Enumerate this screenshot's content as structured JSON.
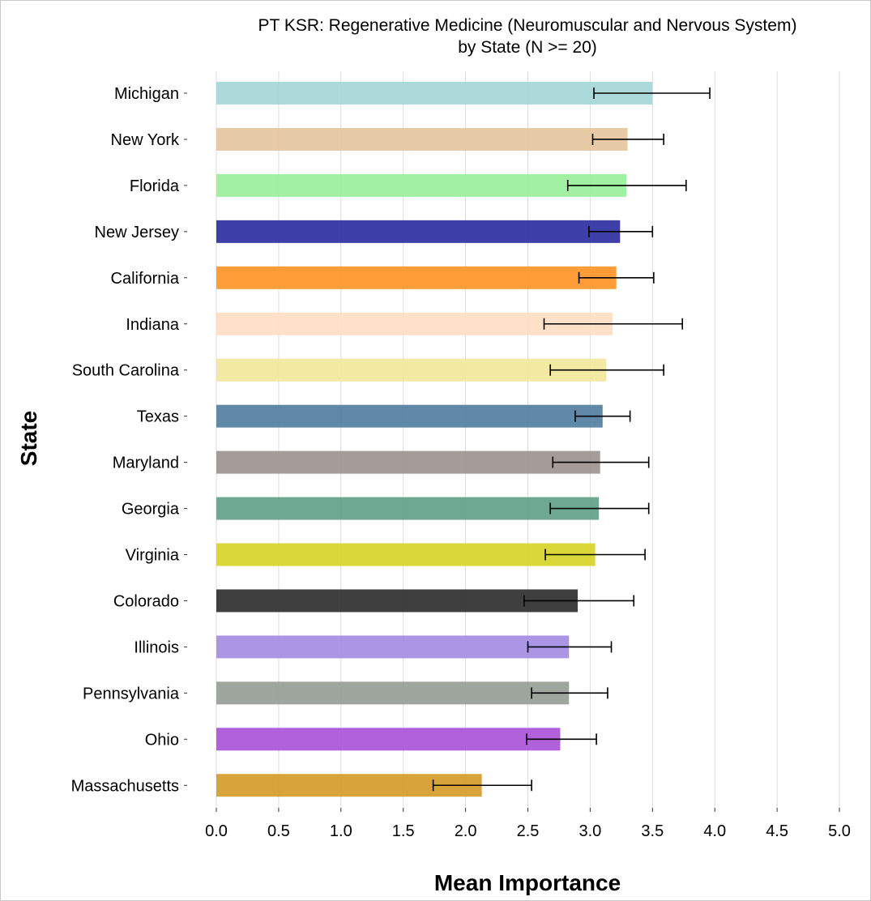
{
  "chart_data": {
    "type": "bar",
    "orientation": "horizontal",
    "title": "PT KSR: Regenerative Medicine (Neuromuscular and Nervous System)",
    "subtitle": "by State (N >= 20)",
    "xlabel": "Mean Importance",
    "ylabel": "State",
    "xlim": [
      0,
      5
    ],
    "x_ticks": [
      "0.0",
      "0.5",
      "1.0",
      "1.5",
      "2.0",
      "2.5",
      "3.0",
      "3.5",
      "4.0",
      "4.5",
      "5.0"
    ],
    "grid": "vertical",
    "legend": "none",
    "bars": [
      {
        "category": "Michigan",
        "value": 3.5,
        "err_low": 3.03,
        "err_high": 3.96,
        "color": "#a3d5d5"
      },
      {
        "category": "New York",
        "value": 3.3,
        "err_low": 3.02,
        "err_high": 3.59,
        "color": "#e4c49c"
      },
      {
        "category": "Florida",
        "value": 3.29,
        "err_low": 2.82,
        "err_high": 3.77,
        "color": "#98ee98"
      },
      {
        "category": "New Jersey",
        "value": 3.24,
        "err_low": 2.99,
        "err_high": 3.5,
        "color": "#2a2aa0"
      },
      {
        "category": "California",
        "value": 3.21,
        "err_low": 2.91,
        "err_high": 3.51,
        "color": "#ff9324"
      },
      {
        "category": "Indiana",
        "value": 3.18,
        "err_low": 2.63,
        "err_high": 3.74,
        "color": "#ffddc2"
      },
      {
        "category": "South Carolina",
        "value": 3.13,
        "err_low": 2.68,
        "err_high": 3.59,
        "color": "#f1e799"
      },
      {
        "category": "Texas",
        "value": 3.1,
        "err_low": 2.88,
        "err_high": 3.32,
        "color": "#4f7c9e"
      },
      {
        "category": "Maryland",
        "value": 3.08,
        "err_low": 2.7,
        "err_high": 3.47,
        "color": "#9b908e"
      },
      {
        "category": "Georgia",
        "value": 3.07,
        "err_low": 2.68,
        "err_high": 3.47,
        "color": "#5f9e85"
      },
      {
        "category": "Virginia",
        "value": 3.04,
        "err_low": 2.64,
        "err_high": 3.44,
        "color": "#d6d324"
      },
      {
        "category": "Colorado",
        "value": 2.9,
        "err_low": 2.47,
        "err_high": 3.35,
        "color": "#2a2a2a"
      },
      {
        "category": "Illinois",
        "value": 2.83,
        "err_low": 2.5,
        "err_high": 3.17,
        "color": "#a28ae2"
      },
      {
        "category": "Pennsylvania",
        "value": 2.83,
        "err_low": 2.53,
        "err_high": 3.14,
        "color": "#949c94"
      },
      {
        "category": "Ohio",
        "value": 2.76,
        "err_low": 2.49,
        "err_high": 3.05,
        "color": "#aa50d8"
      },
      {
        "category": "Massachusetts",
        "value": 2.13,
        "err_low": 1.74,
        "err_high": 2.53,
        "color": "#d49a24"
      }
    ]
  }
}
